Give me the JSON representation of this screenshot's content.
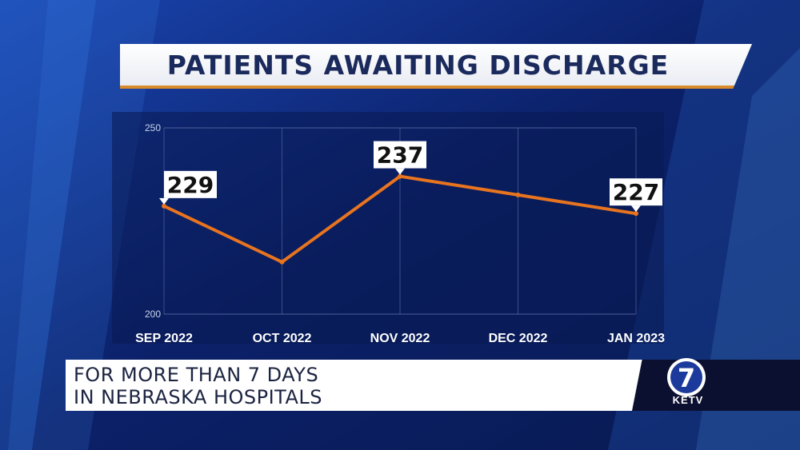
{
  "header": {
    "title": "PATIENTS AWAITING DISCHARGE"
  },
  "chart_data": {
    "type": "line",
    "title": "PATIENTS AWAITING DISCHARGE",
    "categories": [
      "SEP 2022",
      "OCT 2022",
      "NOV 2022",
      "DEC 2022",
      "JAN 2023"
    ],
    "series": [
      {
        "name": "Patients awaiting discharge",
        "values": [
          229,
          214,
          237,
          232,
          227
        ]
      }
    ],
    "data_labels": [
      {
        "index": 0,
        "text": "229"
      },
      {
        "index": 2,
        "text": "237"
      },
      {
        "index": 4,
        "text": "227"
      }
    ],
    "yticks": [
      200,
      250
    ],
    "ylim": [
      200,
      250
    ],
    "xlabel": "",
    "ylabel": "",
    "grid": true,
    "line_color": "#e8741f"
  },
  "lower_third": {
    "line1": "FOR MORE THAN 7 DAYS",
    "line2": "IN NEBRASKA HOSPITALS"
  },
  "logo": {
    "number": "7",
    "station": "KETV"
  }
}
